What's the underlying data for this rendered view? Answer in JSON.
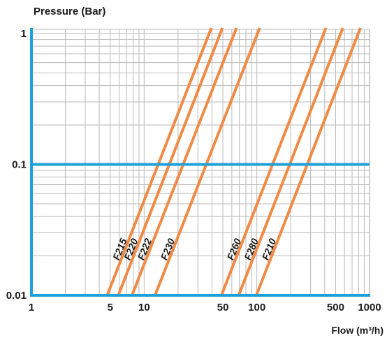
{
  "chart_data": {
    "type": "line",
    "ylabel": "Pressure (Bar)",
    "xlabel": "Flow (m³/h)",
    "x_scale": "log",
    "y_scale": "log",
    "xlim": [
      1,
      1000
    ],
    "ylim": [
      0.01,
      1
    ],
    "grid": true,
    "x_ticks": [
      {
        "value": 1,
        "label": "1"
      },
      {
        "value": 5,
        "label": "5"
      },
      {
        "value": 10,
        "label": "10"
      },
      {
        "value": 50,
        "label": "50"
      },
      {
        "value": 100,
        "label": "100"
      },
      {
        "value": 500,
        "label": "500"
      },
      {
        "value": 1000,
        "label": "1000"
      }
    ],
    "y_ticks": [
      {
        "value": 0.01,
        "label": "0.01"
      },
      {
        "value": 0.1,
        "label": "0.1"
      },
      {
        "value": 1,
        "label": "1"
      }
    ],
    "colors": {
      "series": "#f08a44",
      "axis": "#1ea0d8",
      "grid": "#b9b9b9",
      "text": "#1a1a1a"
    },
    "series": [
      {
        "name": "F215",
        "x": [
          4.7,
          39.5
        ],
        "y": [
          0.01,
          1
        ]
      },
      {
        "name": "F220",
        "x": [
          5.9,
          49.5
        ],
        "y": [
          0.01,
          1
        ]
      },
      {
        "name": "F222",
        "x": [
          7.8,
          66.0
        ],
        "y": [
          0.01,
          1
        ]
      },
      {
        "name": "F230",
        "x": [
          12.5,
          106.0
        ],
        "y": [
          0.01,
          1
        ]
      },
      {
        "name": "F260",
        "x": [
          48.5,
          410.0
        ],
        "y": [
          0.01,
          1
        ]
      },
      {
        "name": "F280",
        "x": [
          69.0,
          580.0
        ],
        "y": [
          0.01,
          1
        ]
      },
      {
        "name": "F210",
        "x": [
          99.0,
          830.0
        ],
        "y": [
          0.01,
          1
        ]
      }
    ]
  }
}
